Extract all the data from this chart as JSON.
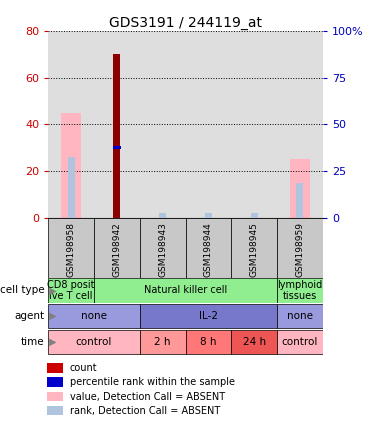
{
  "title": "GDS3191 / 244119_at",
  "samples": [
    "GSM198958",
    "GSM198942",
    "GSM198943",
    "GSM198944",
    "GSM198945",
    "GSM198959"
  ],
  "count_values": [
    0,
    70,
    0,
    0,
    0,
    0
  ],
  "percentile_rank": [
    0,
    30,
    0,
    0,
    0,
    0
  ],
  "value_absent": [
    45,
    0,
    0,
    0,
    0,
    25
  ],
  "rank_absent": [
    26,
    0,
    2,
    2,
    2,
    15
  ],
  "ylim_left": [
    0,
    80
  ],
  "ylim_right": [
    0,
    100
  ],
  "yticks_left": [
    0,
    20,
    40,
    60,
    80
  ],
  "yticks_right": [
    0,
    25,
    50,
    75,
    100
  ],
  "cell_type_labels": [
    {
      "label": "CD8 posit\nive T cell",
      "cols": [
        0,
        0
      ],
      "color": "#90EE90"
    },
    {
      "label": "Natural killer cell",
      "cols": [
        1,
        4
      ],
      "color": "#90EE90"
    },
    {
      "label": "lymphoid\ntissues",
      "cols": [
        5,
        5
      ],
      "color": "#90EE90"
    }
  ],
  "agent_labels": [
    {
      "label": "none",
      "cols": [
        0,
        1
      ],
      "color": "#9999DD"
    },
    {
      "label": "IL-2",
      "cols": [
        2,
        4
      ],
      "color": "#7777CC"
    },
    {
      "label": "none",
      "cols": [
        5,
        5
      ],
      "color": "#9999DD"
    }
  ],
  "time_labels": [
    {
      "label": "control",
      "cols": [
        0,
        1
      ],
      "color": "#FFB6C1"
    },
    {
      "label": "2 h",
      "cols": [
        2,
        2
      ],
      "color": "#FF9999"
    },
    {
      "label": "8 h",
      "cols": [
        3,
        3
      ],
      "color": "#FF7777"
    },
    {
      "label": "24 h",
      "cols": [
        4,
        4
      ],
      "color": "#EE5555"
    },
    {
      "label": "control",
      "cols": [
        5,
        5
      ],
      "color": "#FFB6C1"
    }
  ],
  "n_samples": 6,
  "color_count": "#8B0000",
  "color_percentile": "#0000CC",
  "color_value_absent": "#FFB6C1",
  "color_rank_absent": "#B0C4DE",
  "bg_color": "#FFFFFF",
  "axis_color_left": "#CC0000",
  "axis_color_right": "#0000BB",
  "sample_bg_color": "#C8C8C8",
  "legend_items": [
    {
      "color": "#CC0000",
      "label": "count"
    },
    {
      "color": "#0000CC",
      "label": "percentile rank within the sample"
    },
    {
      "color": "#FFB6C1",
      "label": "value, Detection Call = ABSENT"
    },
    {
      "color": "#B0C4DE",
      "label": "rank, Detection Call = ABSENT"
    }
  ]
}
